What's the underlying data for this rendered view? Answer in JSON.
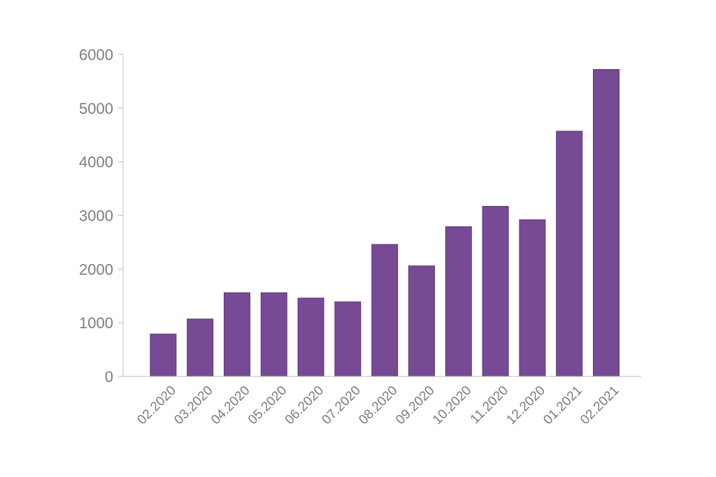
{
  "chart_data": {
    "type": "bar",
    "title": "",
    "xlabel": "",
    "ylabel": "",
    "categories": [
      "02.2020",
      "03.2020",
      "04.2020",
      "05.2020",
      "06.2020",
      "07.2020",
      "08.2020",
      "09.2020",
      "10.2020",
      "11.2020",
      "12.2020",
      "01.2021",
      "02.2021"
    ],
    "values": [
      790,
      1070,
      1560,
      1560,
      1460,
      1390,
      2460,
      2060,
      2790,
      3170,
      2920,
      4570,
      5720
    ],
    "ylim": [
      0,
      6000
    ],
    "yticks": [
      "0",
      "1000",
      "2000",
      "3000",
      "4000",
      "5000",
      "6000"
    ],
    "grid": false,
    "legend": "none",
    "x_tick_rotation": "-45deg",
    "colors": {
      "bar": "#764a94",
      "bar_edge": "#5e3577",
      "axis": "#bdbdbd",
      "tick_text": "#7d7d7d"
    }
  }
}
